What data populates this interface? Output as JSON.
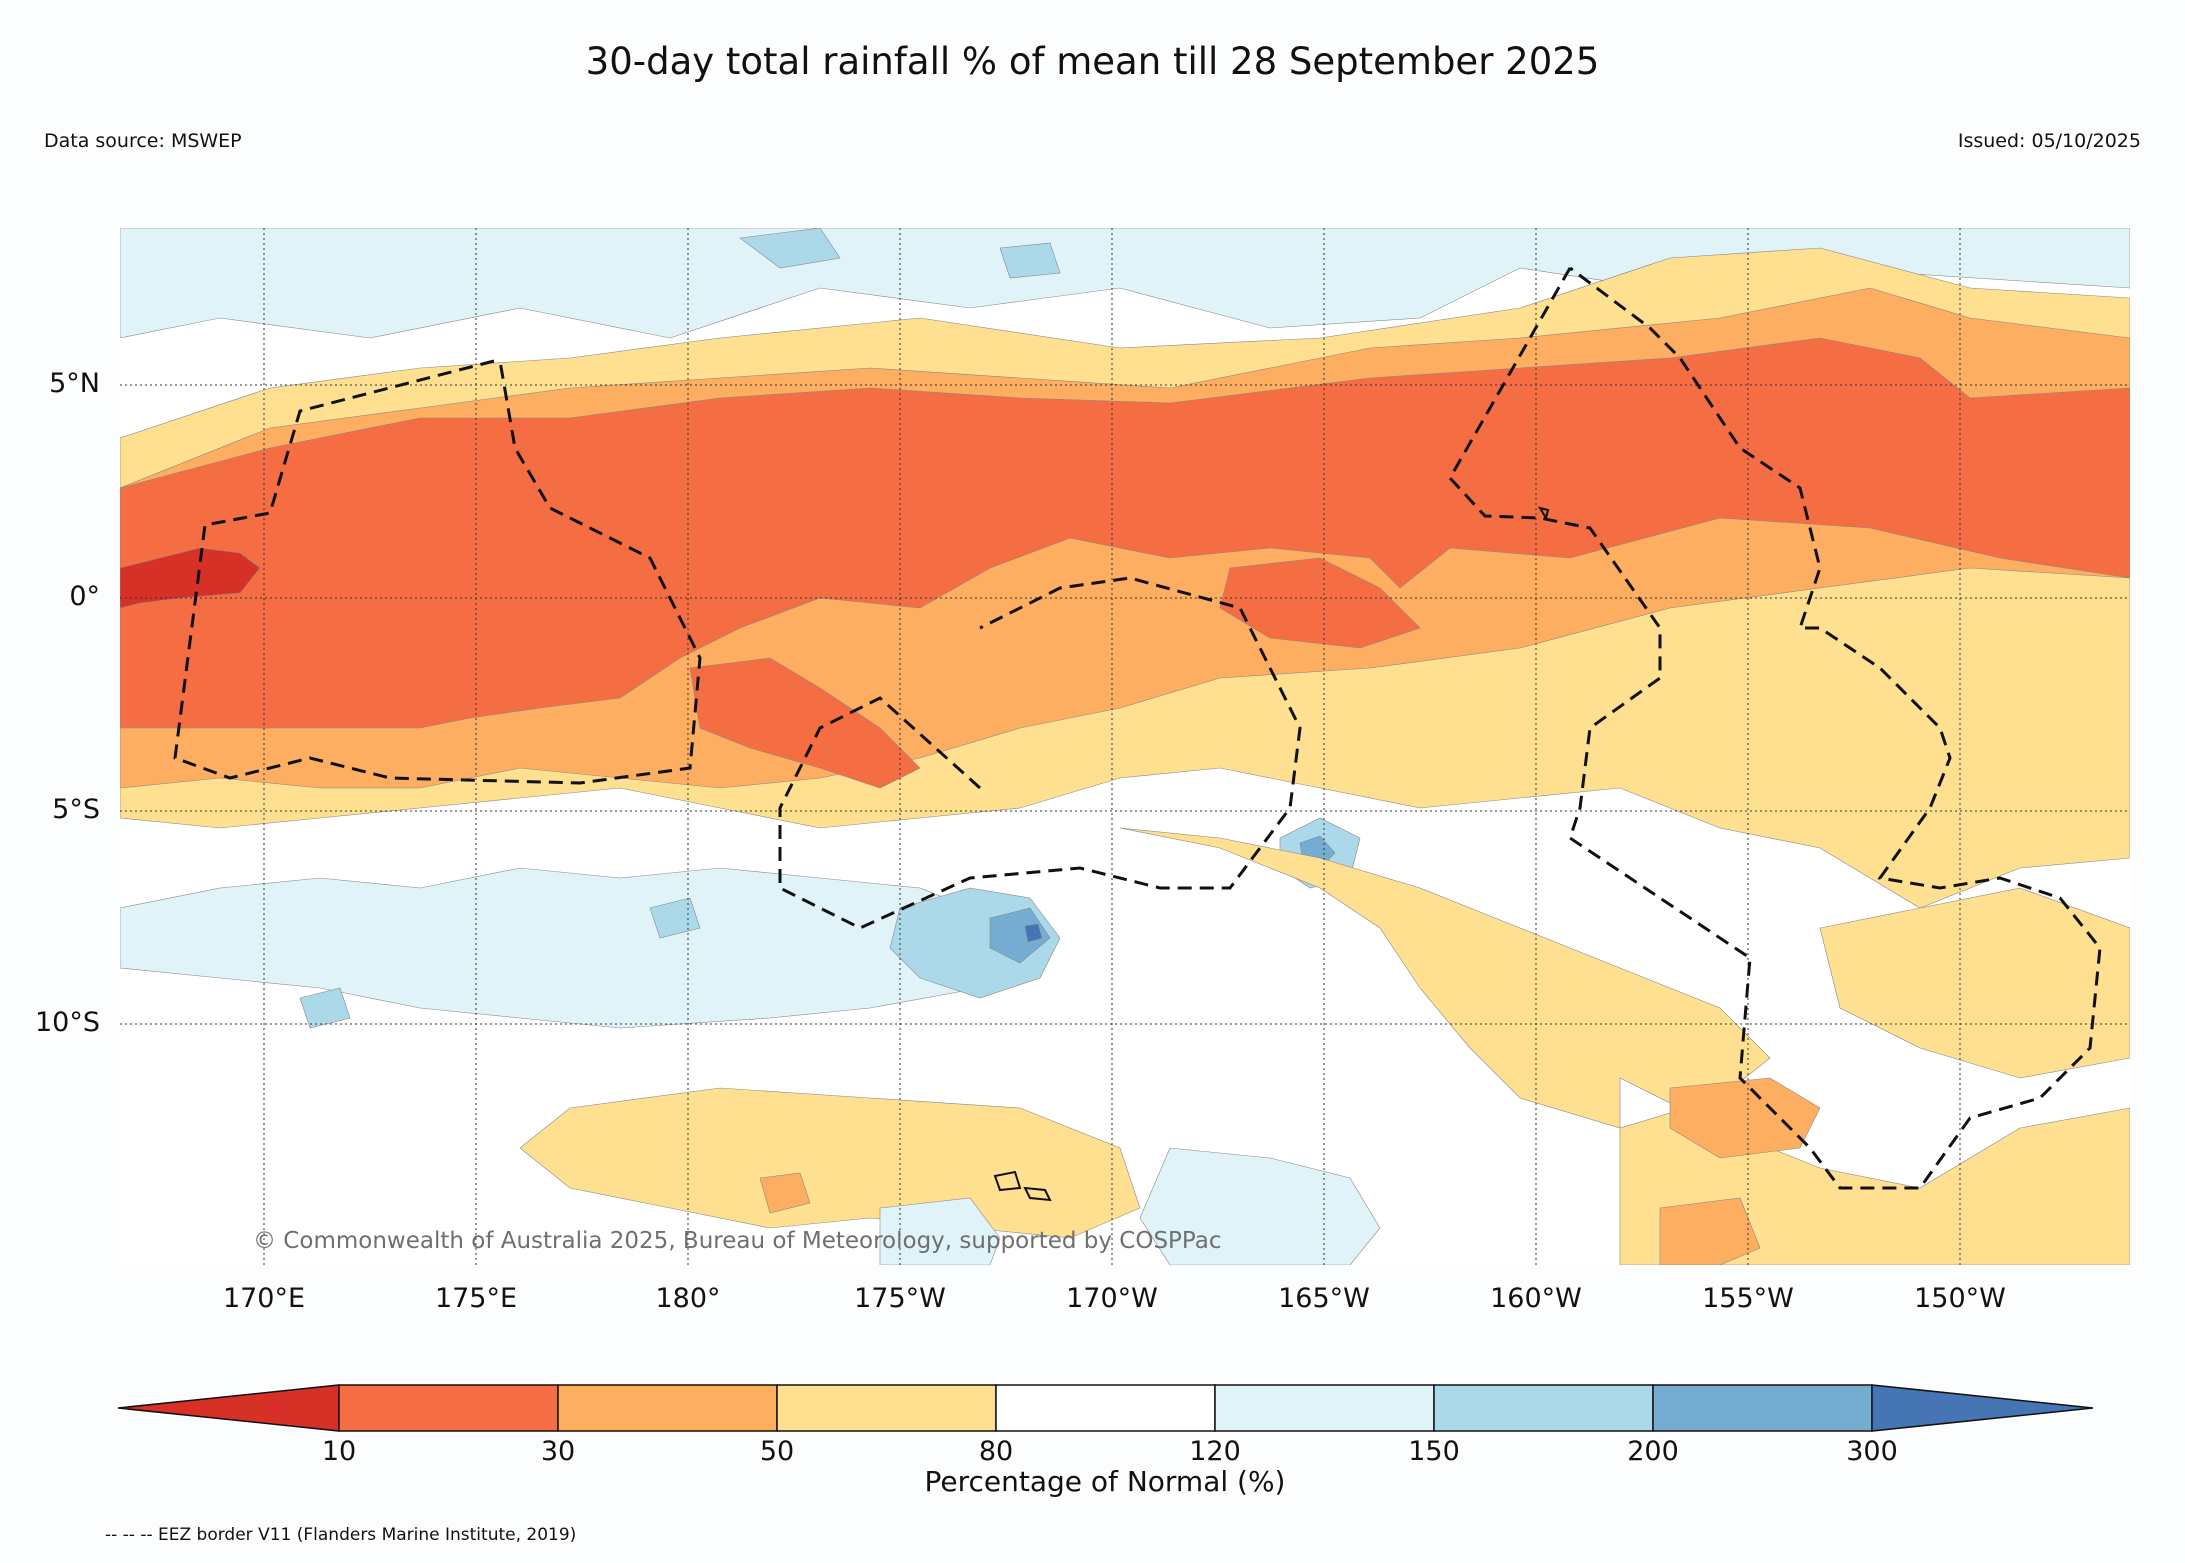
{
  "title": "30-day total rainfall % of mean till 28 September 2025",
  "data_source": "Data source: MSWEP",
  "issued": "Issued: 05/10/2025",
  "copyright": "© Commonwealth of Australia 2025, Bureau of Meteorology, supported by COSPPac",
  "footnote": "-- -- -- EEZ border V11 (Flanders Marine Institute, 2019)",
  "lat_labels": [
    "5°N",
    "0°",
    "5°S",
    "10°S"
  ],
  "lon_labels": [
    "170°E",
    "175°E",
    "180°",
    "175°W",
    "170°W",
    "165°W",
    "160°W",
    "155°W",
    "150°W"
  ],
  "colorbar": {
    "title": "Percentage of Normal (%)",
    "ticks": [
      "10",
      "30",
      "50",
      "80",
      "120",
      "150",
      "200",
      "300"
    ],
    "colors": [
      "#d73027",
      "#f46d43",
      "#fdae61",
      "#fee090",
      "#ffffff",
      "#e0f3f8",
      "#abd9e9",
      "#74add1",
      "#4575b4"
    ]
  },
  "map_colors": {
    "below_10": "#d73027",
    "10_30": "#f46d43",
    "30_50": "#fdae61",
    "50_80": "#fee090",
    "80_120": "#ffffff",
    "120_150": "#e0f3f8",
    "150_200": "#abd9e9",
    "200_300": "#74add1",
    "above_300": "#4575b4"
  }
}
